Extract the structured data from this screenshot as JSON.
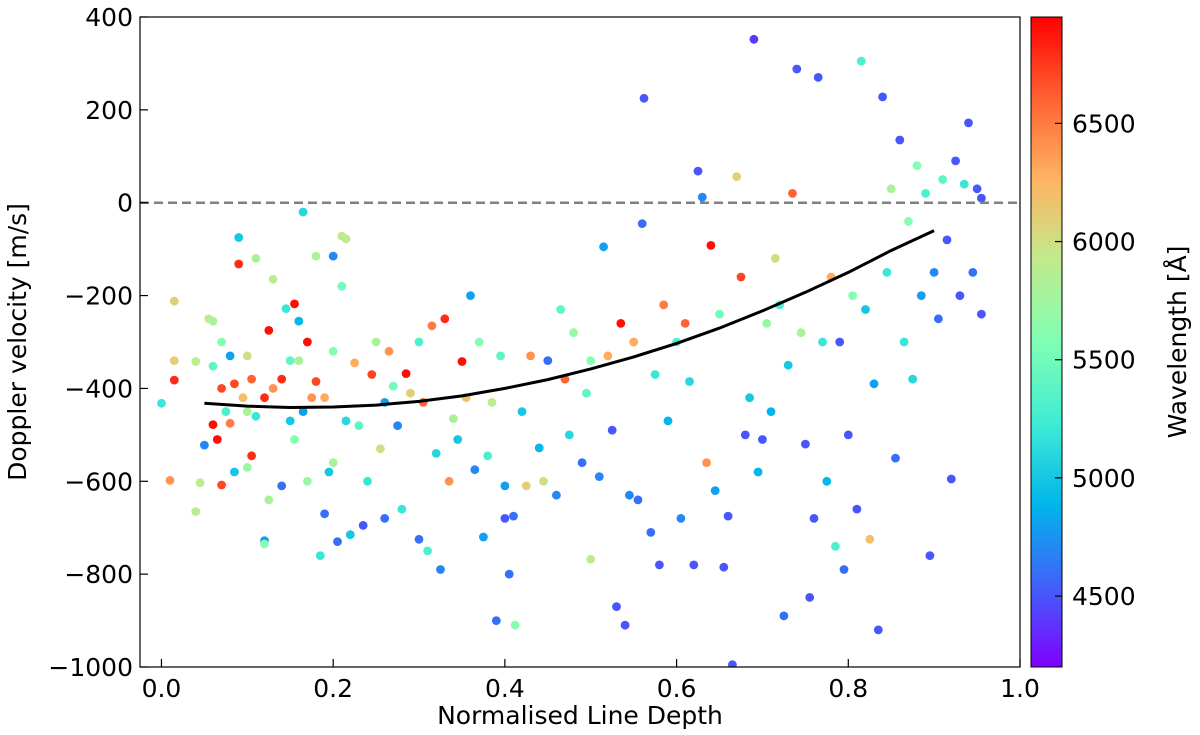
{
  "chart_data": {
    "type": "scatter",
    "title": "",
    "xlabel": "Normalised Line Depth",
    "ylabel": "Doppler velocity [m/s]",
    "xlim": [
      -0.025,
      1.0
    ],
    "ylim": [
      -1000,
      400
    ],
    "xticks": [
      0.0,
      0.2,
      0.4,
      0.6,
      0.8,
      1.0
    ],
    "xtick_labels": [
      "0.0",
      "0.2",
      "0.4",
      "0.6",
      "0.8",
      "1.0"
    ],
    "yticks": [
      -1000,
      -800,
      -600,
      -400,
      -200,
      0,
      200,
      400
    ],
    "ytick_labels": [
      "−1000",
      "−800",
      "−600",
      "−400",
      "−200",
      "0",
      "200",
      "400"
    ],
    "grid": false,
    "reference_line": {
      "y": 0,
      "style": "dashed",
      "color": "#808080"
    },
    "fit_curve": {
      "color": "#000000",
      "points": [
        [
          0.05,
          -432
        ],
        [
          0.1,
          -438
        ],
        [
          0.15,
          -441
        ],
        [
          0.2,
          -440
        ],
        [
          0.25,
          -436
        ],
        [
          0.3,
          -428
        ],
        [
          0.35,
          -416
        ],
        [
          0.4,
          -400
        ],
        [
          0.45,
          -381
        ],
        [
          0.5,
          -358
        ],
        [
          0.55,
          -332
        ],
        [
          0.6,
          -303
        ],
        [
          0.65,
          -270
        ],
        [
          0.7,
          -233
        ],
        [
          0.75,
          -193
        ],
        [
          0.8,
          -150
        ],
        [
          0.85,
          -103
        ],
        [
          0.9,
          -60
        ]
      ]
    },
    "colorbar": {
      "label": "Wavelength [Å]",
      "min": 4200,
      "max": 6950,
      "ticks": [
        4500,
        5000,
        5500,
        6000,
        6500
      ],
      "tick_labels": [
        "4500",
        "5000",
        "5500",
        "6000",
        "6500"
      ],
      "colormap": "rainbow"
    },
    "points": [
      [
        0.0,
        -432,
        5200
      ],
      [
        0.01,
        -598,
        6400
      ],
      [
        0.015,
        -382,
        6800
      ],
      [
        0.015,
        -340,
        6100
      ],
      [
        0.015,
        -212,
        6100
      ],
      [
        0.04,
        -342,
        5900
      ],
      [
        0.04,
        -665,
        5900
      ],
      [
        0.045,
        -603,
        5900
      ],
      [
        0.05,
        -522,
        4700
      ],
      [
        0.055,
        -250,
        5900
      ],
      [
        0.06,
        -478,
        6900
      ],
      [
        0.06,
        -352,
        5400
      ],
      [
        0.06,
        -255,
        5800
      ],
      [
        0.065,
        -510,
        6900
      ],
      [
        0.07,
        -608,
        6700
      ],
      [
        0.07,
        -400,
        6700
      ],
      [
        0.07,
        -300,
        5600
      ],
      [
        0.075,
        -450,
        5300
      ],
      [
        0.08,
        -475,
        6500
      ],
      [
        0.08,
        -330,
        4800
      ],
      [
        0.085,
        -580,
        5000
      ],
      [
        0.085,
        -390,
        6700
      ],
      [
        0.09,
        -132,
        6800
      ],
      [
        0.09,
        -75,
        5000
      ],
      [
        0.095,
        -420,
        6200
      ],
      [
        0.1,
        -570,
        5700
      ],
      [
        0.1,
        -450,
        5800
      ],
      [
        0.1,
        -330,
        6000
      ],
      [
        0.105,
        -545,
        6800
      ],
      [
        0.105,
        -380,
        6600
      ],
      [
        0.11,
        -120,
        5800
      ],
      [
        0.11,
        -460,
        5200
      ],
      [
        0.12,
        -728,
        4800
      ],
      [
        0.12,
        -735,
        5600
      ],
      [
        0.12,
        -420,
        6800
      ],
      [
        0.125,
        -275,
        6900
      ],
      [
        0.125,
        -640,
        5800
      ],
      [
        0.13,
        -165,
        5900
      ],
      [
        0.13,
        -400,
        6400
      ],
      [
        0.14,
        -380,
        6800
      ],
      [
        0.14,
        -610,
        4600
      ],
      [
        0.145,
        -228,
        5200
      ],
      [
        0.15,
        -470,
        5000
      ],
      [
        0.15,
        -340,
        5400
      ],
      [
        0.155,
        -510,
        5600
      ],
      [
        0.155,
        -218,
        6900
      ],
      [
        0.16,
        -255,
        4900
      ],
      [
        0.16,
        -340,
        5800
      ],
      [
        0.165,
        -20,
        5100
      ],
      [
        0.165,
        -450,
        4800
      ],
      [
        0.17,
        -600,
        5700
      ],
      [
        0.17,
        -300,
        6900
      ],
      [
        0.175,
        -420,
        6400
      ],
      [
        0.18,
        -115,
        5800
      ],
      [
        0.18,
        -385,
        6700
      ],
      [
        0.185,
        -760,
        5200
      ],
      [
        0.19,
        -670,
        4600
      ],
      [
        0.19,
        -420,
        6300
      ],
      [
        0.195,
        -580,
        5000
      ],
      [
        0.2,
        -115,
        4700
      ],
      [
        0.2,
        -560,
        5800
      ],
      [
        0.2,
        -320,
        5600
      ],
      [
        0.205,
        -730,
        4600
      ],
      [
        0.21,
        -180,
        5500
      ],
      [
        0.21,
        -72,
        5900
      ],
      [
        0.215,
        -78,
        5900
      ],
      [
        0.215,
        -470,
        5100
      ],
      [
        0.22,
        -715,
        5000
      ],
      [
        0.225,
        -345,
        6300
      ],
      [
        0.23,
        -480,
        5400
      ],
      [
        0.235,
        -695,
        4500
      ],
      [
        0.24,
        -600,
        5200
      ],
      [
        0.245,
        -370,
        6700
      ],
      [
        0.25,
        -300,
        5800
      ],
      [
        0.255,
        -530,
        6000
      ],
      [
        0.26,
        -430,
        4800
      ],
      [
        0.26,
        -680,
        4600
      ],
      [
        0.265,
        -320,
        6400
      ],
      [
        0.27,
        -395,
        5500
      ],
      [
        0.275,
        -480,
        4700
      ],
      [
        0.28,
        -660,
        5200
      ],
      [
        0.285,
        -368,
        6900
      ],
      [
        0.29,
        -410,
        6100
      ],
      [
        0.3,
        -725,
        4600
      ],
      [
        0.3,
        -300,
        5300
      ],
      [
        0.305,
        -430,
        6600
      ],
      [
        0.31,
        -750,
        5300
      ],
      [
        0.315,
        -265,
        6500
      ],
      [
        0.32,
        -540,
        5100
      ],
      [
        0.325,
        -790,
        4700
      ],
      [
        0.33,
        -250,
        6800
      ],
      [
        0.335,
        -600,
        6400
      ],
      [
        0.34,
        -465,
        5800
      ],
      [
        0.345,
        -510,
        5000
      ],
      [
        0.35,
        -342,
        6900
      ],
      [
        0.355,
        -420,
        6200
      ],
      [
        0.36,
        -200,
        4800
      ],
      [
        0.365,
        -575,
        4700
      ],
      [
        0.37,
        -300,
        5600
      ],
      [
        0.375,
        -720,
        4800
      ],
      [
        0.38,
        -545,
        5300
      ],
      [
        0.385,
        -430,
        5900
      ],
      [
        0.39,
        -900,
        4600
      ],
      [
        0.395,
        -330,
        5400
      ],
      [
        0.4,
        -680,
        4500
      ],
      [
        0.4,
        -610,
        4800
      ],
      [
        0.405,
        -800,
        4600
      ],
      [
        0.41,
        -675,
        4600
      ],
      [
        0.412,
        -910,
        5600
      ],
      [
        0.42,
        -450,
        5000
      ],
      [
        0.425,
        -610,
        6100
      ],
      [
        0.43,
        -330,
        6400
      ],
      [
        0.44,
        -528,
        4900
      ],
      [
        0.445,
        -600,
        6000
      ],
      [
        0.45,
        -340,
        4600
      ],
      [
        0.46,
        -630,
        4700
      ],
      [
        0.465,
        -230,
        5400
      ],
      [
        0.47,
        -380,
        6600
      ],
      [
        0.475,
        -500,
        5100
      ],
      [
        0.48,
        -280,
        5700
      ],
      [
        0.49,
        -560,
        4600
      ],
      [
        0.495,
        -410,
        5400
      ],
      [
        0.5,
        -768,
        5900
      ],
      [
        0.5,
        -340,
        5600
      ],
      [
        0.51,
        -590,
        4700
      ],
      [
        0.515,
        -95,
        4800
      ],
      [
        0.52,
        -330,
        6300
      ],
      [
        0.525,
        -490,
        4500
      ],
      [
        0.53,
        -870,
        4500
      ],
      [
        0.535,
        -260,
        6900
      ],
      [
        0.54,
        -910,
        4500
      ],
      [
        0.545,
        -630,
        4700
      ],
      [
        0.55,
        -300,
        6300
      ],
      [
        0.555,
        -640,
        4600
      ],
      [
        0.56,
        -45,
        4600
      ],
      [
        0.562,
        225,
        4500
      ],
      [
        0.57,
        -710,
        4600
      ],
      [
        0.575,
        -370,
        5200
      ],
      [
        0.58,
        -780,
        4500
      ],
      [
        0.585,
        -220,
        6500
      ],
      [
        0.59,
        -470,
        4900
      ],
      [
        0.6,
        -300,
        5300
      ],
      [
        0.605,
        -680,
        4700
      ],
      [
        0.61,
        -260,
        6600
      ],
      [
        0.615,
        -385,
        5100
      ],
      [
        0.62,
        -780,
        4500
      ],
      [
        0.625,
        68,
        4500
      ],
      [
        0.63,
        12,
        4700
      ],
      [
        0.635,
        -560,
        6400
      ],
      [
        0.64,
        -92,
        6900
      ],
      [
        0.645,
        -620,
        4800
      ],
      [
        0.65,
        -240,
        5500
      ],
      [
        0.655,
        -785,
        4500
      ],
      [
        0.66,
        -675,
        4500
      ],
      [
        0.665,
        -995,
        4500
      ],
      [
        0.67,
        56,
        6100
      ],
      [
        0.675,
        -160,
        6700
      ],
      [
        0.68,
        -500,
        4500
      ],
      [
        0.685,
        -420,
        5000
      ],
      [
        0.69,
        352,
        4400
      ],
      [
        0.695,
        -580,
        4900
      ],
      [
        0.7,
        -510,
        4500
      ],
      [
        0.705,
        -260,
        5700
      ],
      [
        0.71,
        -450,
        4900
      ],
      [
        0.715,
        -120,
        6000
      ],
      [
        0.72,
        -220,
        5300
      ],
      [
        0.725,
        -890,
        4600
      ],
      [
        0.73,
        -350,
        5000
      ],
      [
        0.735,
        20,
        6600
      ],
      [
        0.74,
        288,
        4500
      ],
      [
        0.745,
        -280,
        5800
      ],
      [
        0.75,
        -520,
        4500
      ],
      [
        0.755,
        -850,
        4500
      ],
      [
        0.76,
        -680,
        4500
      ],
      [
        0.765,
        270,
        4500
      ],
      [
        0.77,
        -300,
        5200
      ],
      [
        0.775,
        -600,
        4900
      ],
      [
        0.78,
        -160,
        6300
      ],
      [
        0.785,
        -740,
        5300
      ],
      [
        0.79,
        -300,
        4500
      ],
      [
        0.795,
        -790,
        4600
      ],
      [
        0.8,
        -500,
        4500
      ],
      [
        0.805,
        -200,
        5600
      ],
      [
        0.81,
        -660,
        4500
      ],
      [
        0.815,
        305,
        5300
      ],
      [
        0.82,
        -230,
        5000
      ],
      [
        0.825,
        -725,
        6200
      ],
      [
        0.83,
        -390,
        4800
      ],
      [
        0.835,
        -920,
        4500
      ],
      [
        0.84,
        228,
        4500
      ],
      [
        0.845,
        -150,
        5200
      ],
      [
        0.85,
        30,
        5800
      ],
      [
        0.855,
        -550,
        4600
      ],
      [
        0.86,
        135,
        4500
      ],
      [
        0.865,
        -300,
        5200
      ],
      [
        0.87,
        -40,
        5600
      ],
      [
        0.875,
        -380,
        5100
      ],
      [
        0.88,
        80,
        5600
      ],
      [
        0.885,
        -200,
        4800
      ],
      [
        0.89,
        20,
        5300
      ],
      [
        0.895,
        -760,
        4500
      ],
      [
        0.9,
        -150,
        4700
      ],
      [
        0.905,
        -250,
        4600
      ],
      [
        0.91,
        50,
        5400
      ],
      [
        0.915,
        -80,
        4500
      ],
      [
        0.92,
        -595,
        4500
      ],
      [
        0.925,
        90,
        4500
      ],
      [
        0.93,
        -200,
        4500
      ],
      [
        0.935,
        40,
        5200
      ],
      [
        0.94,
        172,
        4500
      ],
      [
        0.945,
        -150,
        4600
      ],
      [
        0.95,
        30,
        4500
      ],
      [
        0.955,
        -240,
        4500
      ],
      [
        0.955,
        10,
        4500
      ]
    ]
  }
}
